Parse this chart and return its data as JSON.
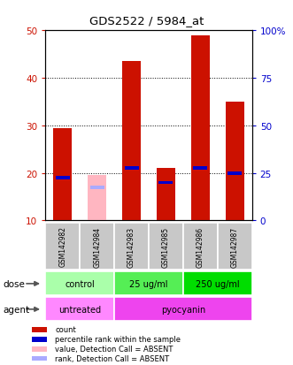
{
  "title": "GDS2522 / 5984_at",
  "samples": [
    "GSM142982",
    "GSM142984",
    "GSM142983",
    "GSM142985",
    "GSM142986",
    "GSM142987"
  ],
  "count_values": [
    29.5,
    0,
    43.5,
    21.0,
    49.0,
    35.0
  ],
  "percentile_values": [
    19.0,
    0,
    21.0,
    18.0,
    21.0,
    20.0
  ],
  "absent_count_values": [
    0,
    19.5,
    0,
    0,
    0,
    0
  ],
  "absent_percentile_values": [
    0,
    17.0,
    0,
    0,
    0,
    0
  ],
  "ylim": [
    10,
    50
  ],
  "y2lim": [
    0,
    100
  ],
  "yticks": [
    10,
    20,
    30,
    40,
    50
  ],
  "y2ticks": [
    0,
    25,
    50,
    75,
    100
  ],
  "y2tick_labels": [
    "0",
    "25",
    "50",
    "75",
    "100%"
  ],
  "count_color": "#CC1100",
  "percentile_color": "#0000CC",
  "absent_count_color": "#FFB6C1",
  "absent_percentile_color": "#AAAAFF",
  "sample_bg_color": "#C8C8C8",
  "dose_colors": [
    "#AAFFAA",
    "#55EE55",
    "#00DD00"
  ],
  "dose_labels": [
    [
      "control",
      0,
      2
    ],
    [
      "25 ug/ml",
      2,
      4
    ],
    [
      "250 ug/ml",
      4,
      6
    ]
  ],
  "agent_colors": [
    "#FF88FF",
    "#EE44EE"
  ],
  "agent_labels": [
    [
      "untreated",
      0,
      2
    ],
    [
      "pyocyanin",
      2,
      6
    ]
  ],
  "label_color_left": "#CC1100",
  "label_color_right": "#0000CC",
  "legend_items": [
    [
      "#CC1100",
      "count"
    ],
    [
      "#0000CC",
      "percentile rank within the sample"
    ],
    [
      "#FFB6C1",
      "value, Detection Call = ABSENT"
    ],
    [
      "#AAAAFF",
      "rank, Detection Call = ABSENT"
    ]
  ]
}
